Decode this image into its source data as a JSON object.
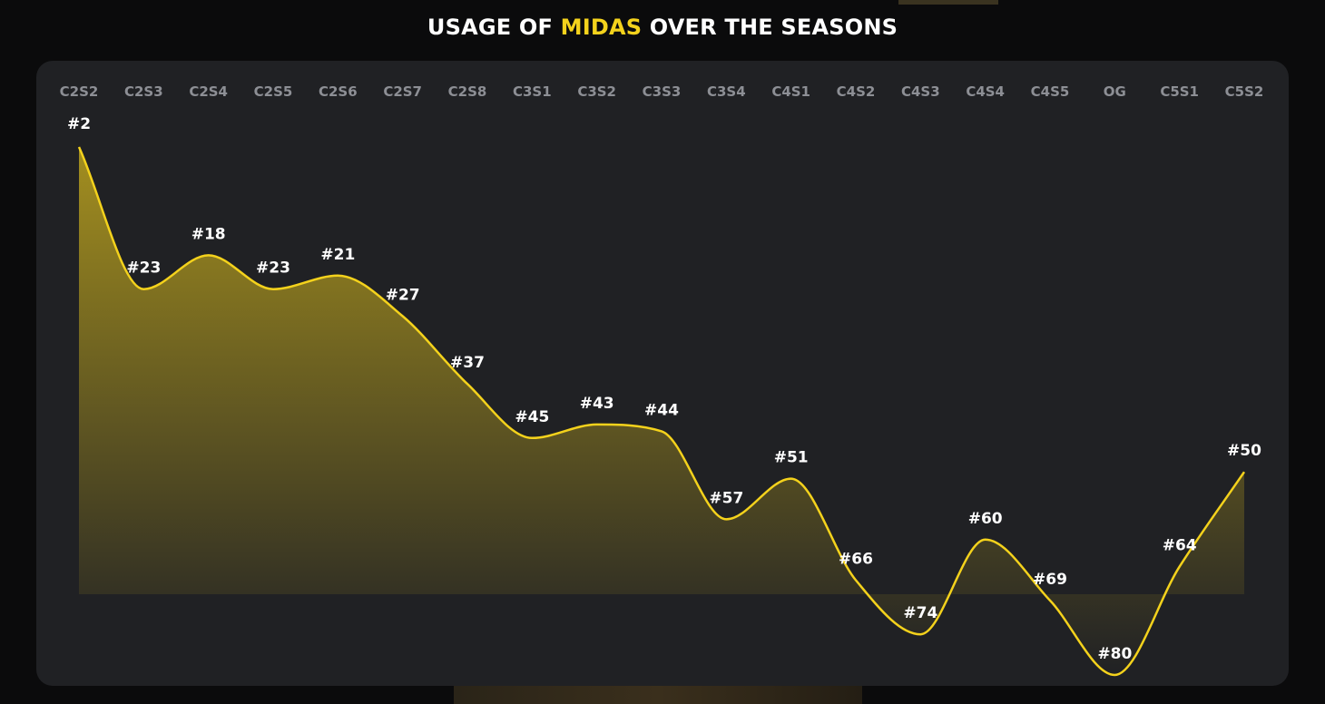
{
  "header": {
    "title_prefix": "USAGE OF ",
    "title_accent": "MIDAS",
    "title_suffix": " OVER THE SEASONS"
  },
  "colors": {
    "accent": "#f4d21c",
    "panel": "#202124",
    "background": "#0b0b0c",
    "tick": "#8d8f95"
  },
  "chart_data": {
    "type": "area",
    "title": "USAGE OF MIDAS OVER THE SEASONS",
    "categories": [
      "C2S2",
      "C2S3",
      "C2S4",
      "C2S5",
      "C2S6",
      "C2S7",
      "C2S8",
      "C3S1",
      "C3S2",
      "C3S3",
      "C3S4",
      "C4S1",
      "C4S2",
      "C4S3",
      "C4S4",
      "C4S5",
      "OG",
      "C5S1",
      "C5S2"
    ],
    "series": [
      {
        "values": [
          2,
          23,
          18,
          23,
          21,
          27,
          37,
          45,
          43,
          44,
          57,
          51,
          66,
          74,
          60,
          69,
          80,
          64,
          50
        ]
      }
    ],
    "labels": [
      "#2",
      "#23",
      "#18",
      "#23",
      "#21",
      "#27",
      "#37",
      "#45",
      "#43",
      "#44",
      "#57",
      "#51",
      "#66",
      "#74",
      "#60",
      "#69",
      "#80",
      "#64",
      "#50"
    ],
    "y_inverted": true,
    "ylim": [
      2,
      80
    ],
    "grid": false,
    "legend": "none"
  }
}
